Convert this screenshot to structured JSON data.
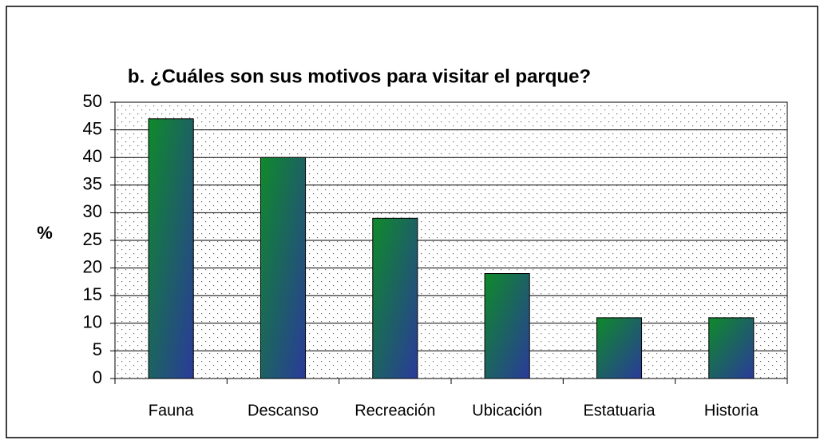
{
  "chart_data": {
    "type": "bar",
    "title": "b. ¿Cuáles son sus motivos para visitar el parque?",
    "y_label": "%",
    "categories": [
      "Fauna",
      "Descanso",
      "Recreación",
      "Ubicación",
      "Estatuaria",
      "Historia"
    ],
    "values": [
      47,
      40,
      29,
      19,
      11,
      11
    ],
    "color": [
      "#0f8a2a",
      "#2a3a9a"
    ],
    "ylim": [
      0,
      50
    ],
    "yticks": [
      0,
      5,
      10,
      15,
      20,
      25,
      30,
      35,
      40,
      45,
      50
    ],
    "grid": true
  }
}
